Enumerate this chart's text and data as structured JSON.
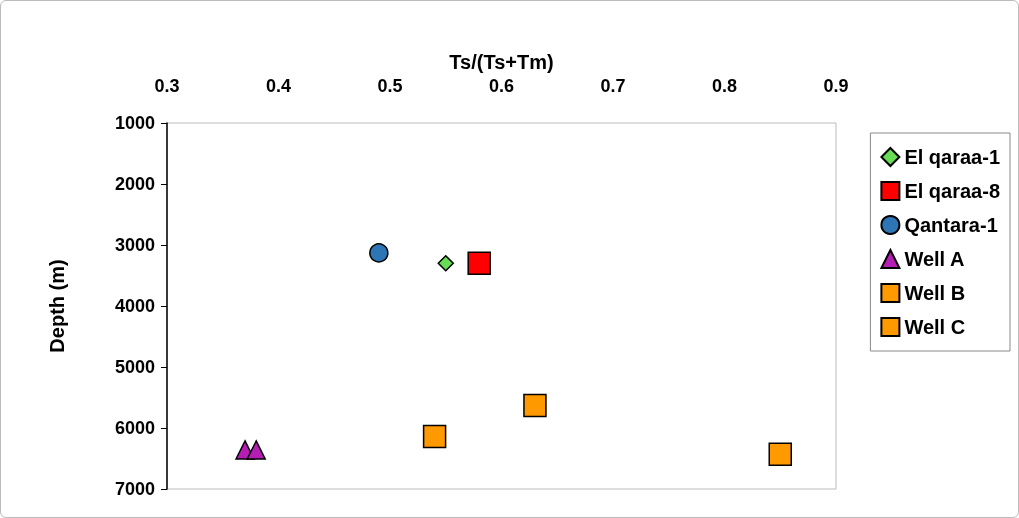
{
  "chart_data": {
    "type": "scatter",
    "xlabel": "Ts/(Ts+Tm)",
    "ylabel": "Depth (m)",
    "xlim": [
      0.3,
      0.9
    ],
    "xticks": [
      0.3,
      0.4,
      0.5,
      0.6,
      0.7,
      0.8,
      0.9
    ],
    "ylim": [
      7000,
      1000
    ],
    "yticks": [
      1000,
      2000,
      3000,
      4000,
      5000,
      6000,
      7000
    ],
    "grid": false,
    "legend": "right",
    "series": [
      {
        "name": "El qaraa-1",
        "color": "#66dd55",
        "marker": "diamond",
        "x": [
          0.55
        ],
        "values": [
          3300
        ]
      },
      {
        "name": "El qaraa-8",
        "color": "#ff0000",
        "marker": "square",
        "x": [
          0.58
        ],
        "values": [
          3300
        ]
      },
      {
        "name": "Qantara-1",
        "color": "#2e75b6",
        "marker": "circle",
        "x": [
          0.49
        ],
        "values": [
          3130
        ]
      },
      {
        "name": "Well A",
        "color": "#b41eb4",
        "marker": "triangle",
        "x": [
          0.37,
          0.38
        ],
        "values": [
          6360,
          6360
        ]
      },
      {
        "name": "Well B",
        "color": "#ff9900",
        "marker": "square",
        "x": [
          0.63,
          0.54
        ],
        "values": [
          5630,
          6140
        ]
      },
      {
        "name": "Well C",
        "color": "#ff9900",
        "marker": "square",
        "x": [
          0.85
        ],
        "values": [
          6430
        ]
      }
    ]
  }
}
